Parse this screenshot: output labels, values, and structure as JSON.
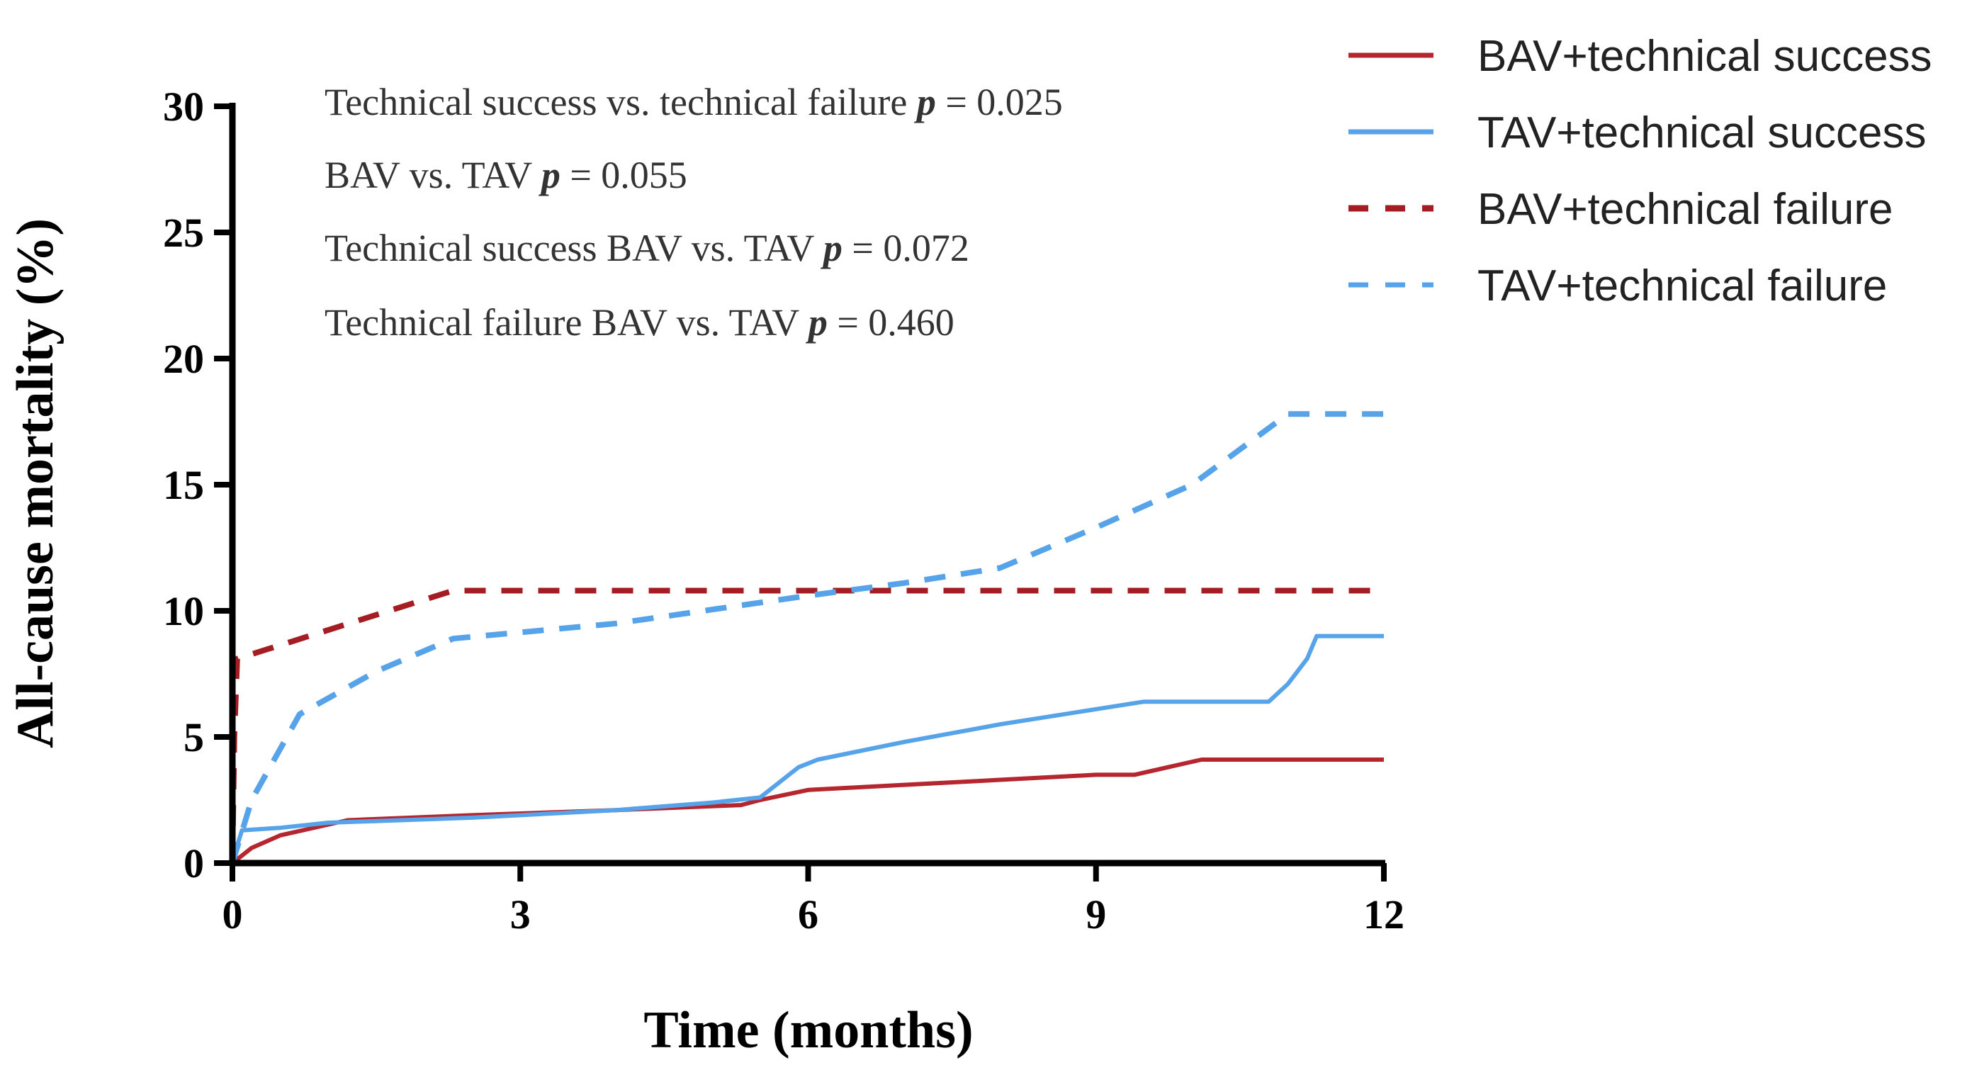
{
  "chart_data": {
    "type": "line",
    "title": "",
    "xlabel": "Time (months)",
    "ylabel": "All-cause mortality  (%)",
    "xlim": [
      0,
      12
    ],
    "ylim": [
      0,
      30
    ],
    "xticks": [
      0,
      3,
      6,
      9,
      12
    ],
    "yticks": [
      0,
      5,
      10,
      15,
      20,
      25,
      30
    ],
    "xtick_labels": [
      "0",
      "3",
      "6",
      "9",
      "12"
    ],
    "ytick_labels": [
      "0",
      "5",
      "10",
      "15",
      "20",
      "25",
      "30"
    ],
    "grid": false,
    "legend_position": "top-right",
    "annotations": [
      {
        "text": "Technical success vs. technical failure ",
        "p_label": "p",
        "p_value": " = 0.025"
      },
      {
        "text": "BAV vs. TAV ",
        "p_label": "p",
        "p_value": " = 0.055"
      },
      {
        "text": "Technical success BAV vs. TAV ",
        "p_label": "p",
        "p_value": " = 0.072"
      },
      {
        "text": "Technical failure BAV vs. TAV  ",
        "p_label": "p",
        "p_value": " = 0.460"
      }
    ],
    "series": [
      {
        "name": "BAV+technical success",
        "color": "#b5262e",
        "style": "solid",
        "x": [
          0,
          0.2,
          0.5,
          1.2,
          2.5,
          4.0,
          5.3,
          5.5,
          6.0,
          7.0,
          8.0,
          9.0,
          9.4,
          10.1,
          12.0
        ],
        "y": [
          0,
          0.6,
          1.1,
          1.7,
          1.9,
          2.1,
          2.3,
          2.5,
          2.9,
          3.1,
          3.3,
          3.5,
          3.5,
          4.1,
          4.1
        ]
      },
      {
        "name": "TAV+technical success",
        "color": "#56a3e9",
        "style": "solid",
        "x": [
          0,
          0.05,
          0.1,
          0.5,
          1.0,
          2.5,
          4.0,
          5.0,
          5.5,
          5.9,
          6.1,
          7.0,
          8.0,
          9.0,
          9.5,
          10.8,
          11.0,
          11.2,
          11.3,
          12.0
        ],
        "y": [
          0,
          0.7,
          1.3,
          1.4,
          1.6,
          1.8,
          2.1,
          2.4,
          2.6,
          3.8,
          4.1,
          4.8,
          5.5,
          6.1,
          6.4,
          6.4,
          7.1,
          8.1,
          9.0,
          9.0
        ]
      },
      {
        "name": "BAV+technical failure",
        "color": "#a41d22",
        "style": "dashed",
        "x": [
          0,
          0.02,
          0.05,
          2.3,
          6.0,
          9.0,
          12.0
        ],
        "y": [
          0,
          5.0,
          8.1,
          10.8,
          10.8,
          10.8,
          10.8
        ]
      },
      {
        "name": "TAV+technical failure",
        "color": "#56a3e9",
        "style": "dashed",
        "x": [
          0,
          0.2,
          0.7,
          1.5,
          2.3,
          4.0,
          6.0,
          7.0,
          8.0,
          9.0,
          10.0,
          11.0,
          11.3,
          12.0
        ],
        "y": [
          0,
          2.5,
          5.9,
          7.6,
          8.9,
          9.5,
          10.6,
          11.1,
          11.7,
          13.3,
          15.0,
          17.8,
          17.8,
          17.8
        ]
      }
    ]
  }
}
